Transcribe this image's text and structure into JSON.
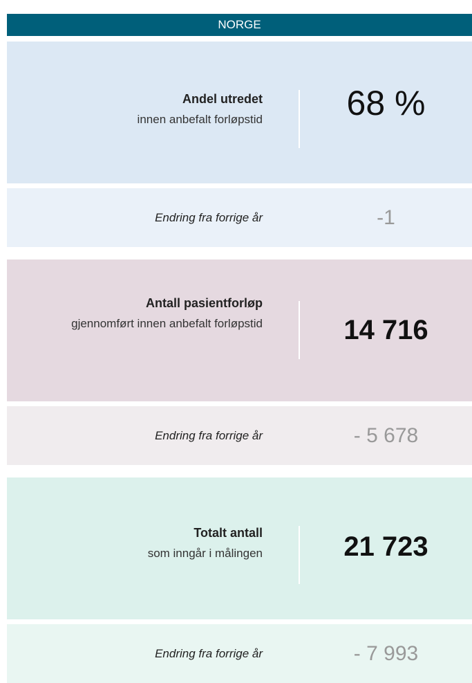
{
  "header": {
    "title": "NORGE"
  },
  "cards": [
    {
      "label": "Andel utredet",
      "sublabel": "innen anbefalt forløpstid",
      "value": "68 %",
      "change_label": "Endring fra forrige år",
      "change": "-1"
    },
    {
      "label": "Antall pasientforløp",
      "sublabel": "gjennomført innen anbefalt forløpstid",
      "value": "14 716",
      "change_label": "Endring fra forrige år",
      "change": "- 5 678"
    },
    {
      "label": "Totalt antall",
      "sublabel": "som inngår i målingen",
      "value": "21 723",
      "change_label": "Endring fra forrige år",
      "change": "- 7 993"
    }
  ]
}
